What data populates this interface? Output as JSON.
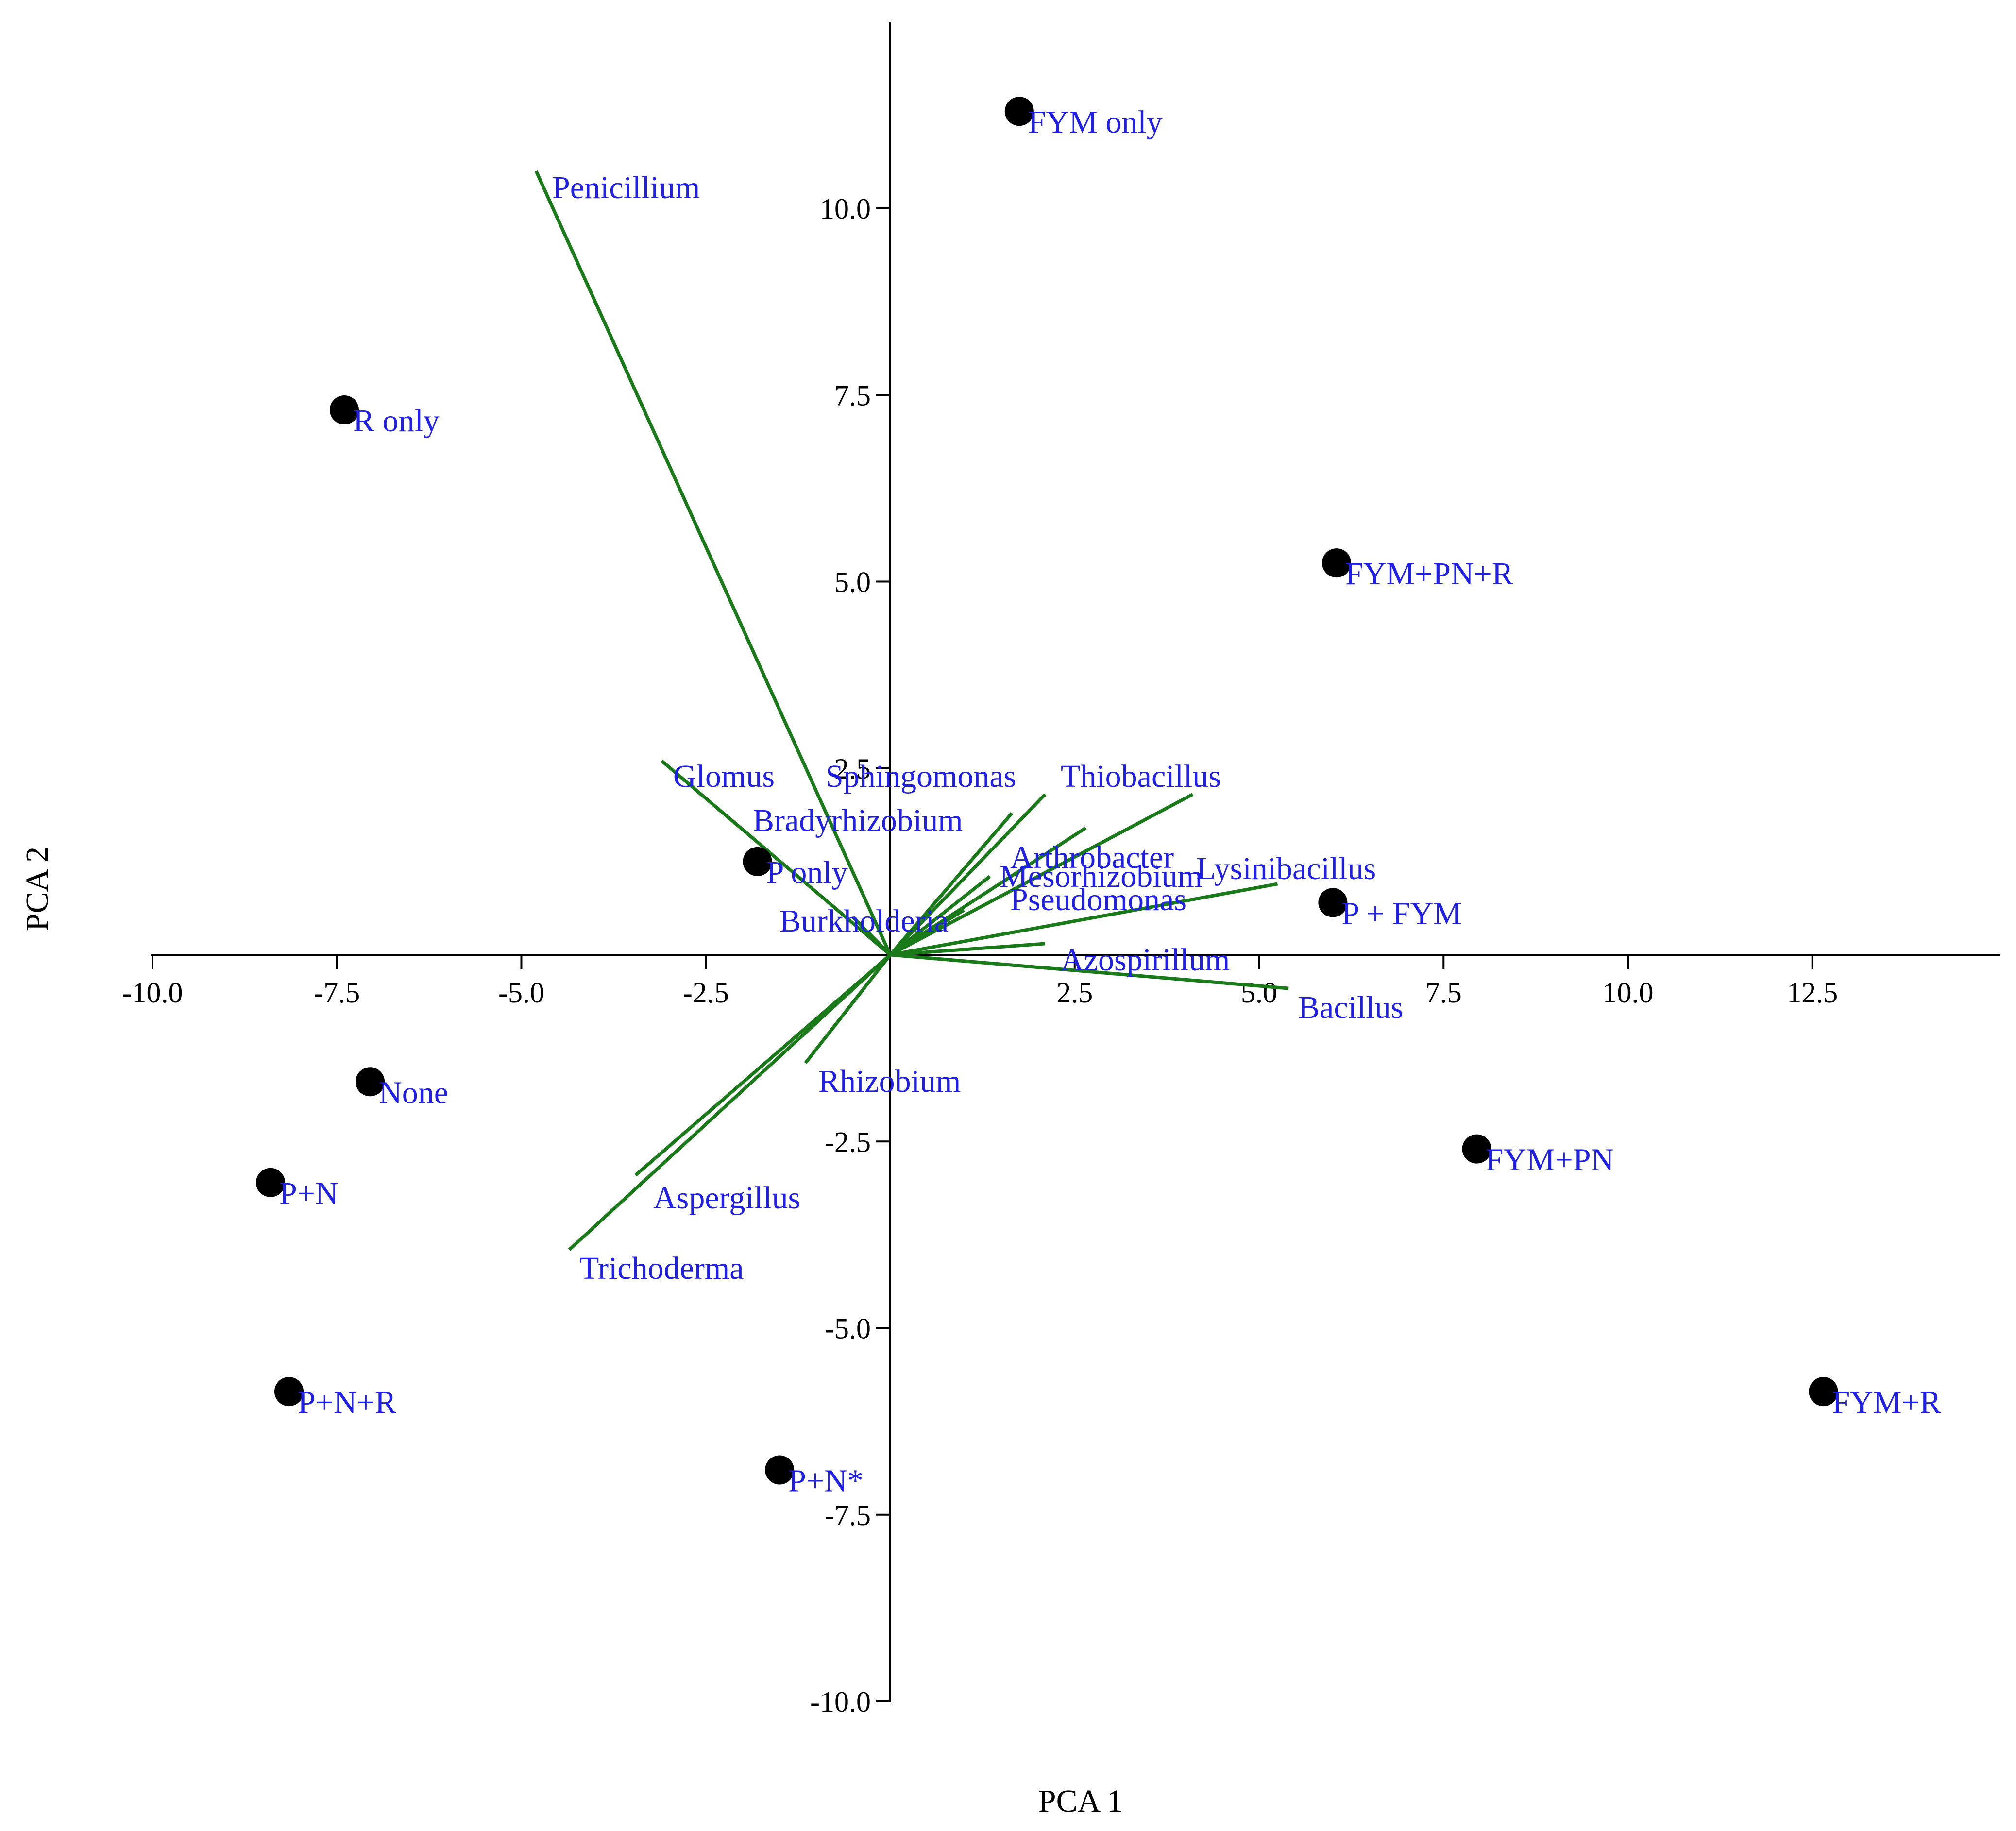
{
  "chart_data": {
    "type": "scatter",
    "title": "",
    "xlabel": "PCA 1",
    "ylabel": "PCA 2",
    "xlim": [
      -10.0,
      15.0
    ],
    "ylim": [
      -10.0,
      12.5
    ],
    "x_ticks": [
      -10.0,
      -7.5,
      -5.0,
      -2.5,
      2.5,
      5.0,
      7.5,
      10.0,
      12.5
    ],
    "x_tick_labels": [
      "-10.0",
      "-7.5",
      "-5.0",
      "-2.5",
      "2.5",
      "5.0",
      "7.5",
      "10.0",
      "12.5"
    ],
    "y_ticks": [
      -10.0,
      -7.5,
      -5.0,
      -2.5,
      2.5,
      5.0,
      7.5,
      10.0
    ],
    "y_tick_labels": [
      "-10.0",
      "-7.5",
      "-5.0",
      "-2.5",
      "2.5",
      "5.0",
      "7.5",
      "10.0"
    ],
    "grid": false,
    "colors": {
      "axis": "#000000",
      "points": "#000000",
      "vectors": "#1a7a1a",
      "labels": "#1f1fe6"
    },
    "samples": [
      {
        "label": "FYM only",
        "x": 1.75,
        "y": 11.3
      },
      {
        "label": "R only",
        "x": -7.4,
        "y": 7.3
      },
      {
        "label": "FYM+PN+R",
        "x": 6.05,
        "y": 5.25
      },
      {
        "label": "P only",
        "x": -1.8,
        "y": 1.25
      },
      {
        "label": "P + FYM",
        "x": 6.0,
        "y": 0.7
      },
      {
        "label": "None",
        "x": -7.05,
        "y": -1.7
      },
      {
        "label": "P+N",
        "x": -8.4,
        "y": -3.05
      },
      {
        "label": "FYM+PN",
        "x": 7.95,
        "y": -2.6
      },
      {
        "label": "P+N+R",
        "x": -8.15,
        "y": -5.85
      },
      {
        "label": "FYM+R",
        "x": 12.65,
        "y": -5.85
      },
      {
        "label": "P+N*",
        "x": -1.5,
        "y": -6.9
      }
    ],
    "loadings": [
      {
        "label": "Penicillium",
        "x": -4.8,
        "y": 10.5
      },
      {
        "label": "Glomus",
        "x": -3.1,
        "y": 2.6
      },
      {
        "label": "Sphingomonas",
        "x": 1.65,
        "y": 1.9
      },
      {
        "label": "Thiobacillus",
        "x": 4.1,
        "y": 2.15
      },
      {
        "label": "Bradyrhizobium",
        "x": 2.1,
        "y": 2.15
      },
      {
        "label": "Arthrobacter",
        "x": 2.65,
        "y": 1.7
      },
      {
        "label": "Mesorhizobium",
        "x": 1.35,
        "y": 1.05
      },
      {
        "label": "Lysinibacillus",
        "x": 5.25,
        "y": 0.95
      },
      {
        "label": "Pseudomonas",
        "x": 1.0,
        "y": 0.6
      },
      {
        "label": "Burkholderia",
        "x": -0.5,
        "y": 0.5
      },
      {
        "label": "Azospirillum",
        "x": 2.1,
        "y": 0.15
      },
      {
        "label": "Bacillus",
        "x": 5.4,
        "y": -0.45
      },
      {
        "label": "Rhizobium",
        "x": -1.15,
        "y": -1.45
      },
      {
        "label": "Aspergillus",
        "x": -3.45,
        "y": -2.95
      },
      {
        "label": "Trichoderma",
        "x": -4.35,
        "y": -3.95
      }
    ]
  },
  "stray_tick_label": "2.5"
}
